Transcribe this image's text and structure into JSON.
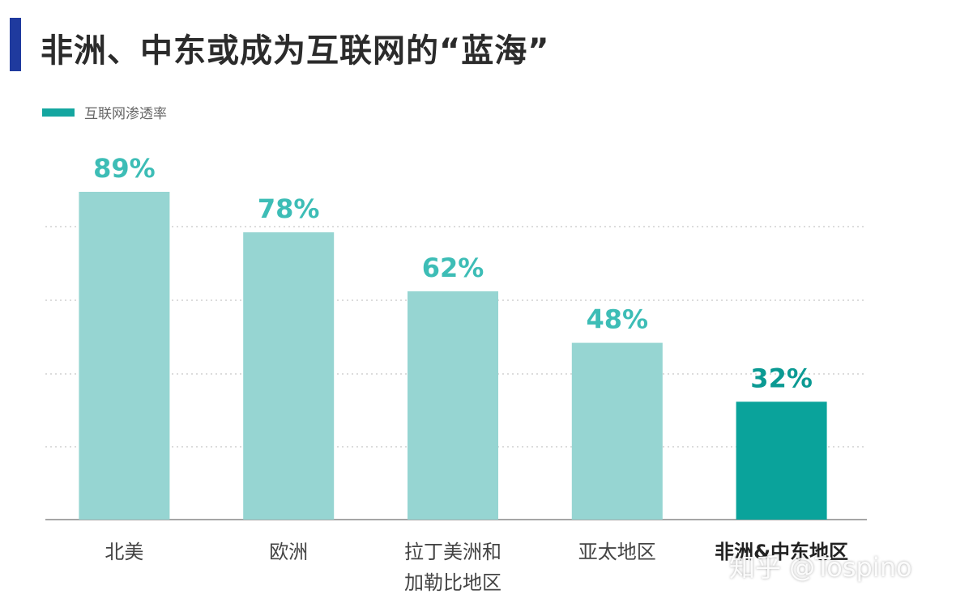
{
  "title": "非洲、中东或成为互联网的“蓝海”",
  "legend": {
    "label": "互联网渗透率",
    "color": "#14a6a0"
  },
  "watermark": "知乎 @Tospino",
  "colors": {
    "bar": "#96d5d2",
    "highlight_bar": "#0aa39b",
    "label": "#3dbdb6",
    "highlight_label": "#0b9a93",
    "axis": "#888888"
  },
  "chart_data": {
    "type": "bar",
    "title": "非洲、中东或成为互联网的“蓝海”",
    "categories": [
      [
        "北美"
      ],
      [
        "欧洲"
      ],
      [
        "拉丁美洲和",
        "加勒比地区"
      ],
      [
        "亚太地区"
      ],
      [
        "非洲&中东地区"
      ]
    ],
    "series": [
      {
        "name": "互联网渗透率",
        "values": [
          89,
          78,
          62,
          48,
          32
        ]
      }
    ],
    "value_labels": [
      "89%",
      "78%",
      "62%",
      "48%",
      "32%"
    ],
    "highlight_index": 4,
    "ylim": [
      0,
      100
    ],
    "grid": true,
    "legend_position": "top-left"
  }
}
